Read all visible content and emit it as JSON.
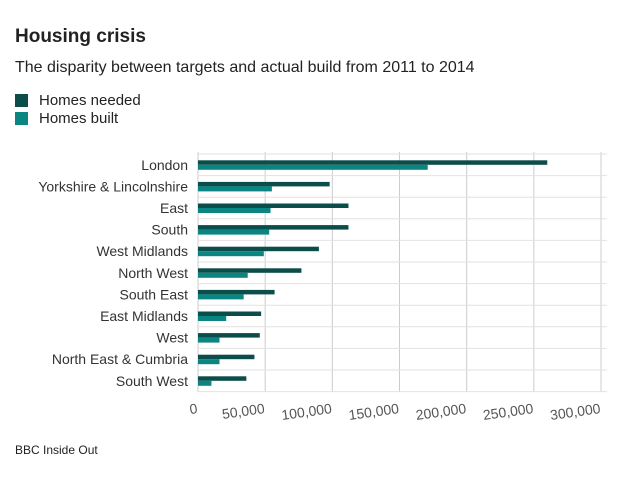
{
  "title": "Housing crisis",
  "subtitle": "The disparity between targets and actual build from 2011 to 2014",
  "source": "BBC Inside Out",
  "colors": {
    "needed": "#0b4d4a",
    "built": "#0a8582",
    "grid": "#cccccc"
  },
  "chart_data": {
    "type": "bar",
    "orientation": "horizontal",
    "title": "Housing crisis",
    "subtitle": "The disparity between targets and actual build from 2011 to 2014",
    "categories": [
      "London",
      "Yorkshire & Lincolnshire",
      "East",
      "South",
      "West Midlands",
      "North West",
      "South East",
      "East Midlands",
      "West",
      "North East & Cumbria",
      "South West"
    ],
    "series": [
      {
        "name": "Homes needed",
        "values": [
          260000,
          98000,
          112000,
          112000,
          90000,
          77000,
          57000,
          47000,
          46000,
          42000,
          36000
        ]
      },
      {
        "name": "Homes built",
        "values": [
          171000,
          55000,
          54000,
          53000,
          49000,
          37000,
          34000,
          21000,
          16000,
          16000,
          10000
        ]
      }
    ],
    "xlim": [
      0,
      300000
    ],
    "xticks": [
      0,
      50000,
      100000,
      150000,
      200000,
      250000,
      300000
    ],
    "xtick_labels": [
      "0",
      "50,000",
      "100,000",
      "150,000",
      "200,000",
      "250,000",
      "300,000"
    ],
    "grid": true,
    "legend": "top-left"
  }
}
